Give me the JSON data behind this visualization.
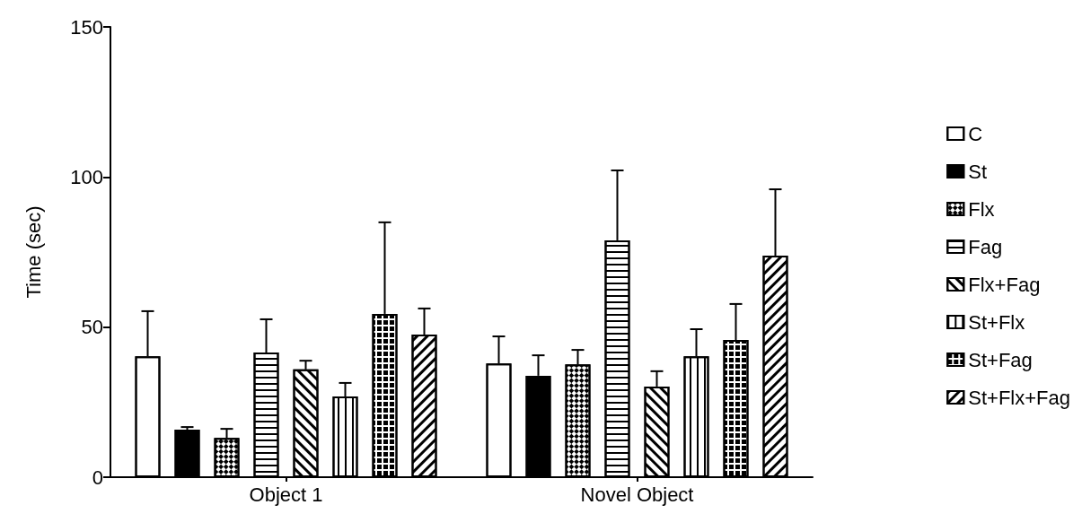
{
  "chart_data": {
    "type": "bar",
    "ylabel": "Time (sec)",
    "categories": [
      "Object 1",
      "Novel Object"
    ],
    "ylim": [
      0,
      150
    ],
    "yticks": [
      0,
      50,
      100,
      150
    ],
    "grid": false,
    "legend": "right",
    "series": [
      {
        "name": "C",
        "color": "#ffffff",
        "values": [
          40.3,
          37.9
        ],
        "errors": [
          [
            40.3,
            55.3
          ],
          [
            37.9,
            46.9
          ]
        ]
      },
      {
        "name": "St",
        "color": "#000000",
        "values": [
          15.8,
          33.8
        ],
        "errors": [
          [
            15.8,
            16.7
          ],
          [
            33.8,
            40.6
          ]
        ]
      },
      {
        "name": "Flx",
        "color": "#ffffff",
        "values": [
          13.1,
          37.6
        ],
        "errors": [
          [
            13.1,
            16.1
          ],
          [
            37.6,
            42.4
          ]
        ]
      },
      {
        "name": "Fag",
        "color": "#ffffff",
        "values": [
          41.5,
          78.9
        ],
        "errors": [
          [
            41.5,
            52.6
          ],
          [
            78.9,
            102.2
          ]
        ]
      },
      {
        "name": "Flx+Fag",
        "color": "#ffffff",
        "values": [
          35.9,
          30.2
        ],
        "errors": [
          [
            35.9,
            38.8
          ],
          [
            30.2,
            35.3
          ]
        ]
      },
      {
        "name": "St+Flx",
        "color": "#ffffff",
        "values": [
          26.9,
          40.3
        ],
        "errors": [
          [
            26.9,
            31.4
          ],
          [
            40.3,
            49.3
          ]
        ]
      },
      {
        "name": "St+Fag",
        "color": "#ffffff",
        "values": [
          54.4,
          45.7
        ],
        "errors": [
          [
            54.4,
            84.9
          ],
          [
            45.7,
            57.7
          ]
        ]
      },
      {
        "name": "St+Flx+Fag",
        "color": "#ffffff",
        "values": [
          47.5,
          73.8
        ],
        "errors": [
          [
            47.5,
            56.2
          ],
          [
            73.8,
            95.9
          ]
        ]
      }
    ]
  }
}
